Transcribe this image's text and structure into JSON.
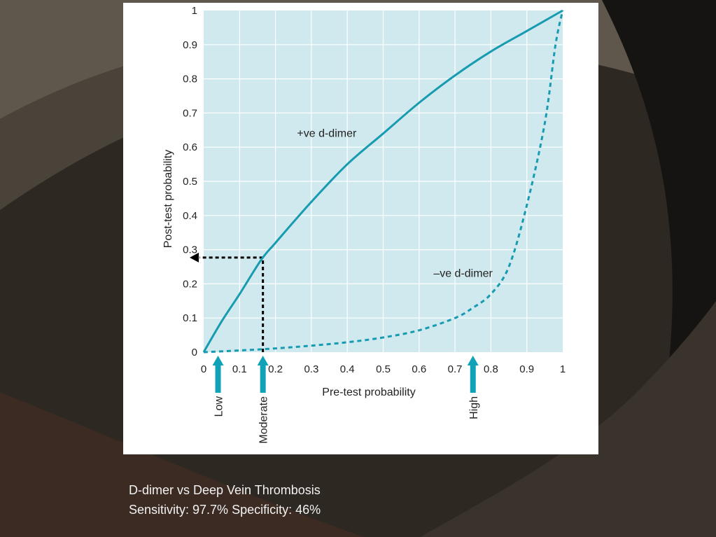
{
  "slide": {
    "caption_line1": "D-dimer vs Deep Vein Thrombosis",
    "caption_line2": "Sensitivity: 97.7% Specificity: 46%"
  },
  "colors": {
    "plot_background": "#cfe9ef",
    "curve": "#179bb0",
    "arrow": "#10a3b7",
    "grid": "#ffffff",
    "marker": "#000000"
  },
  "chart_data": {
    "type": "line",
    "title": "",
    "xlabel": "Pre-test probability",
    "ylabel": "Post-test probability",
    "xlim": [
      0,
      1
    ],
    "ylim": [
      0,
      1
    ],
    "grid": true,
    "legend": "none",
    "x_ticks": [
      "0",
      "0.1",
      "0.2",
      "0.3",
      "0.4",
      "0.5",
      "0.6",
      "0.7",
      "0.8",
      "0.9",
      "1"
    ],
    "y_ticks": [
      "0",
      "0.1",
      "0.2",
      "0.3",
      "0.4",
      "0.5",
      "0.6",
      "0.7",
      "0.8",
      "0.9",
      "1"
    ],
    "series": [
      {
        "name": "+ve d-dimer",
        "style": "solid",
        "x": [
          0,
          0.05,
          0.1,
          0.16,
          0.2,
          0.3,
          0.4,
          0.5,
          0.6,
          0.7,
          0.8,
          0.9,
          1
        ],
        "y": [
          0,
          0.09,
          0.17,
          0.27,
          0.32,
          0.44,
          0.55,
          0.64,
          0.73,
          0.81,
          0.88,
          0.94,
          1
        ]
      },
      {
        "name": "–ve d-dimer",
        "style": "dashed",
        "x": [
          0,
          0.1,
          0.2,
          0.3,
          0.4,
          0.5,
          0.6,
          0.7,
          0.75,
          0.8,
          0.85,
          0.9,
          0.95,
          0.98,
          1
        ],
        "y": [
          0,
          0.005,
          0.011,
          0.019,
          0.029,
          0.043,
          0.064,
          0.1,
          0.13,
          0.17,
          0.25,
          0.43,
          0.67,
          0.9,
          1
        ]
      }
    ],
    "annotations": [
      {
        "text": "+ve d-dimer",
        "x": 0.26,
        "y": 0.63
      },
      {
        "text": "–ve d-dimer",
        "x": 0.64,
        "y": 0.22
      }
    ],
    "reference_point": {
      "x": 0.165,
      "y": 0.277
    },
    "markers": [
      {
        "label": "Low",
        "x": 0.04
      },
      {
        "label": "Moderate",
        "x": 0.165
      },
      {
        "label": "High",
        "x": 0.75
      }
    ]
  }
}
